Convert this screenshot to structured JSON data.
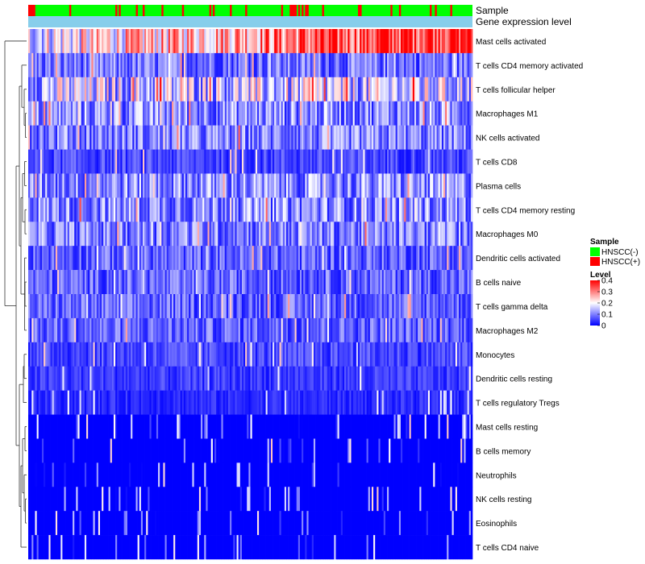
{
  "chart_data": {
    "type": "heatmap",
    "title": "",
    "annotation_tracks": [
      {
        "name": "Sample",
        "label": "Sample"
      },
      {
        "name": "Gene expression level",
        "label": "Gene expression level"
      }
    ],
    "rows": [
      "Mast cells activated",
      "T cells CD4 memory activated",
      "T cells follicular helper",
      "Macrophages M1",
      "NK cells activated",
      "T cells CD8",
      "Plasma cells",
      "T cells CD4 memory resting",
      "Macrophages M0",
      "Dendritic cells activated",
      "B cells naive",
      "T cells gamma delta",
      "Macrophages M2",
      "Monocytes",
      "Dendritic cells resting",
      "T cells regulatory  Tregs",
      "Mast cells resting",
      "B cells memory",
      "Neutrophils",
      "NK cells resting",
      "Eosinophils",
      "T cells CD4 naive"
    ],
    "row_mean_levels": [
      0.3,
      0.08,
      0.14,
      0.1,
      0.09,
      0.05,
      0.1,
      0.1,
      0.09,
      0.07,
      0.07,
      0.07,
      0.07,
      0.05,
      0.04,
      0.03,
      0.01,
      0.02,
      0.01,
      0.01,
      0.005,
      0.01
    ],
    "n_samples": 260,
    "legend": {
      "sample": {
        "title": "Sample",
        "entries": [
          {
            "label": "HNSCC(-)",
            "color": "#00ff00"
          },
          {
            "label": "HNSCC(+)",
            "color": "#ff0000"
          }
        ]
      },
      "level": {
        "title": "Level",
        "ticks": [
          "0.4",
          "0.3",
          "0.2",
          "0.1",
          "0"
        ],
        "tick_values": [
          0.4,
          0.3,
          0.2,
          0.1,
          0
        ],
        "range": [
          0,
          0.4
        ]
      }
    },
    "colors": {
      "low": "#0000ff",
      "mid": "#ffffff",
      "high": "#ff0000",
      "expression_track": "#87ceeb"
    }
  }
}
